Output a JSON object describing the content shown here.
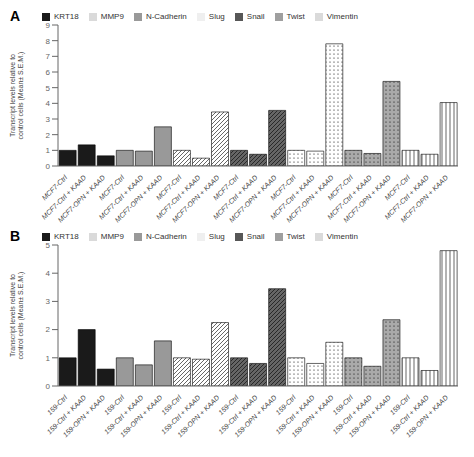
{
  "chart_data": [
    {
      "type": "bar",
      "title": "A",
      "ylabel": "Transcript levels relative to\ncontrol cells (Mean± S.E.M.)",
      "categories": [
        "MCF7-Ctrl",
        "MCF7-Ctrl + KAAD",
        "MCF7-OPN + KAAD",
        "MCF7-Ctrl",
        "MCF7-Ctrl + KAAD",
        "MCF7-OPN + KAAD",
        "MCF7-Ctrl",
        "MCF7-Ctrl + KAAD",
        "MCF7-OPN + KAAD",
        "MCF7-Ctrl",
        "MCF7-Ctrl + KAAD",
        "MCF7-OPN + KAAD",
        "MCF7-Ctrl",
        "MCF7-Ctrl + KAAD",
        "MCF7-OPN + KAAD",
        "MCF7-Ctrl",
        "MCF7-Ctrl + KAAD",
        "MCF7-OPN + KAAD",
        "MCF7-Ctrl",
        "MCF7-Ctrl + KAAD",
        "MCF7-OPN + KAAD"
      ],
      "series": [
        {
          "name": "KRT18",
          "color": "#1a1a1a",
          "values": [
            1.0,
            1.35,
            0.65,
            null,
            null,
            null,
            null,
            null,
            null,
            null,
            null,
            null,
            null,
            null,
            null,
            null,
            null,
            null,
            null,
            null,
            null
          ]
        },
        {
          "name": "N-Cadherin",
          "color": "#999999",
          "values": [
            null,
            null,
            null,
            1.0,
            0.95,
            2.5,
            null,
            null,
            null,
            null,
            null,
            null,
            null,
            null,
            null,
            null,
            null,
            null,
            null,
            null,
            null
          ]
        },
        {
          "name": "Vimentin",
          "color": "#ffffff",
          "values": [
            null,
            null,
            null,
            null,
            null,
            null,
            1.0,
            0.5,
            3.45,
            null,
            null,
            null,
            null,
            null,
            null,
            null,
            null,
            null,
            null,
            null,
            null
          ]
        },
        {
          "name": "Snail",
          "color": "#666666",
          "values": [
            null,
            null,
            null,
            null,
            null,
            null,
            null,
            null,
            null,
            1.0,
            0.75,
            3.55,
            null,
            null,
            null,
            null,
            null,
            null,
            null,
            null,
            null
          ]
        },
        {
          "name": "Slug",
          "color": "#ffffff",
          "values": [
            null,
            null,
            null,
            null,
            null,
            null,
            null,
            null,
            null,
            null,
            null,
            null,
            1.0,
            0.95,
            7.8,
            null,
            null,
            null,
            null,
            null,
            null
          ]
        },
        {
          "name": "Twist",
          "color": "#aaaaaa",
          "values": [
            null,
            null,
            null,
            null,
            null,
            null,
            null,
            null,
            null,
            null,
            null,
            null,
            null,
            null,
            null,
            1.0,
            0.8,
            5.4,
            null,
            null,
            null
          ]
        },
        {
          "name": "MMP9",
          "color": "#ffffff",
          "values": [
            null,
            null,
            null,
            null,
            null,
            null,
            null,
            null,
            null,
            null,
            null,
            null,
            null,
            null,
            null,
            null,
            null,
            null,
            1.0,
            0.75,
            4.05
          ]
        }
      ],
      "ylim": [
        0,
        9
      ],
      "yticks": [
        0,
        1,
        2,
        3,
        4,
        5,
        6,
        7,
        8,
        9
      ],
      "grid": false,
      "legend": "top"
    },
    {
      "type": "bar",
      "title": "B",
      "ylabel": "Transcript levels relative to\ncontrol cells (Mean± S.E.M.)",
      "categories": [
        "159-Ctrl",
        "159-Ctrl + KAAD",
        "159-OPN + KAAD",
        "159-Ctrl",
        "159-Ctrl + KAAD",
        "159-OPN + KAAD",
        "159-Ctrl",
        "159-Ctrl + KAAD",
        "159-OPN + KAAD",
        "159-Ctrl",
        "159-Ctrl + KAAD",
        "159-OPN + KAAD",
        "159-Ctrl",
        "159-Ctrl + KAAD",
        "159-OPN + KAAD",
        "159-Ctrl",
        "159-Ctrl + KAAD",
        "159-OPN + KAAD",
        "159-Ctrl",
        "159-Ctrl + KAAD",
        "159-OPN + KAAD"
      ],
      "series": [
        {
          "name": "KRT18",
          "color": "#1a1a1a",
          "values": [
            1.0,
            2.0,
            0.6,
            null,
            null,
            null,
            null,
            null,
            null,
            null,
            null,
            null,
            null,
            null,
            null,
            null,
            null,
            null,
            null,
            null,
            null
          ]
        },
        {
          "name": "N-Cadherin",
          "color": "#999999",
          "values": [
            null,
            null,
            null,
            1.0,
            0.75,
            1.6,
            null,
            null,
            null,
            null,
            null,
            null,
            null,
            null,
            null,
            null,
            null,
            null,
            null,
            null,
            null
          ]
        },
        {
          "name": "Vimentin",
          "color": "#ffffff",
          "values": [
            null,
            null,
            null,
            null,
            null,
            null,
            1.0,
            0.95,
            2.25,
            null,
            null,
            null,
            null,
            null,
            null,
            null,
            null,
            null,
            null,
            null,
            null
          ]
        },
        {
          "name": "Snail",
          "color": "#666666",
          "values": [
            null,
            null,
            null,
            null,
            null,
            null,
            null,
            null,
            null,
            1.0,
            0.8,
            3.45,
            null,
            null,
            null,
            null,
            null,
            null,
            null,
            null,
            null
          ]
        },
        {
          "name": "Slug",
          "color": "#ffffff",
          "values": [
            null,
            null,
            null,
            null,
            null,
            null,
            null,
            null,
            null,
            null,
            null,
            null,
            1.0,
            0.8,
            1.55,
            null,
            null,
            null,
            null,
            null,
            null
          ]
        },
        {
          "name": "Twist",
          "color": "#aaaaaa",
          "values": [
            null,
            null,
            null,
            null,
            null,
            null,
            null,
            null,
            null,
            null,
            null,
            null,
            null,
            null,
            null,
            1.0,
            0.7,
            2.35,
            null,
            null,
            null
          ]
        },
        {
          "name": "MMP9",
          "color": "#ffffff",
          "values": [
            null,
            null,
            null,
            null,
            null,
            null,
            null,
            null,
            null,
            null,
            null,
            null,
            null,
            null,
            null,
            null,
            null,
            null,
            1.0,
            0.55,
            4.8
          ]
        }
      ],
      "ylim": [
        0,
        5
      ],
      "yticks": [
        0,
        1,
        2,
        3,
        4,
        5
      ],
      "grid": false,
      "legend": "top"
    }
  ]
}
